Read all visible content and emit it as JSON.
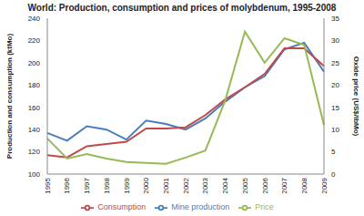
{
  "chart_data": {
    "type": "line",
    "title": "World: Production, consumption and prices of molybdenum, 1995-2008",
    "y_label": "Production and consumption (ktMo)",
    "y2_label": "Oxide price (US$/lbMo)",
    "categories": [
      "1995",
      "1996",
      "1997",
      "1998",
      "1999",
      "2000",
      "2001",
      "2002",
      "2003",
      "2004",
      "2005",
      "2006",
      "2007",
      "2008",
      "2009"
    ],
    "series": [
      {
        "name": "Mine production",
        "color": "#4a7ebb",
        "values": [
          137,
          130,
          143,
          140,
          131,
          148,
          145,
          140,
          150,
          165,
          178,
          188,
          212,
          218,
          192
        ]
      },
      {
        "name": "Consumption",
        "color": "#be4b48",
        "values": [
          117,
          115,
          125,
          127,
          129,
          141,
          141,
          142,
          153,
          167,
          178,
          190,
          213,
          213,
          197
        ]
      },
      {
        "name": "Price",
        "color": "#98b954",
        "axis": "y2",
        "values": [
          8,
          3.5,
          4.5,
          3.5,
          2.7,
          2.5,
          2.3,
          3.7,
          5.3,
          16.5,
          32,
          25,
          30.5,
          29,
          11
        ]
      }
    ],
    "ylim": [
      100,
      240
    ],
    "yticks": [
      100,
      120,
      140,
      160,
      180,
      200,
      220,
      240
    ],
    "y2lim": [
      0,
      35
    ],
    "y2ticks": [
      0,
      5,
      10,
      15,
      20,
      25,
      30,
      35
    ],
    "grid": false,
    "legend": "bottom",
    "marker": "none"
  }
}
